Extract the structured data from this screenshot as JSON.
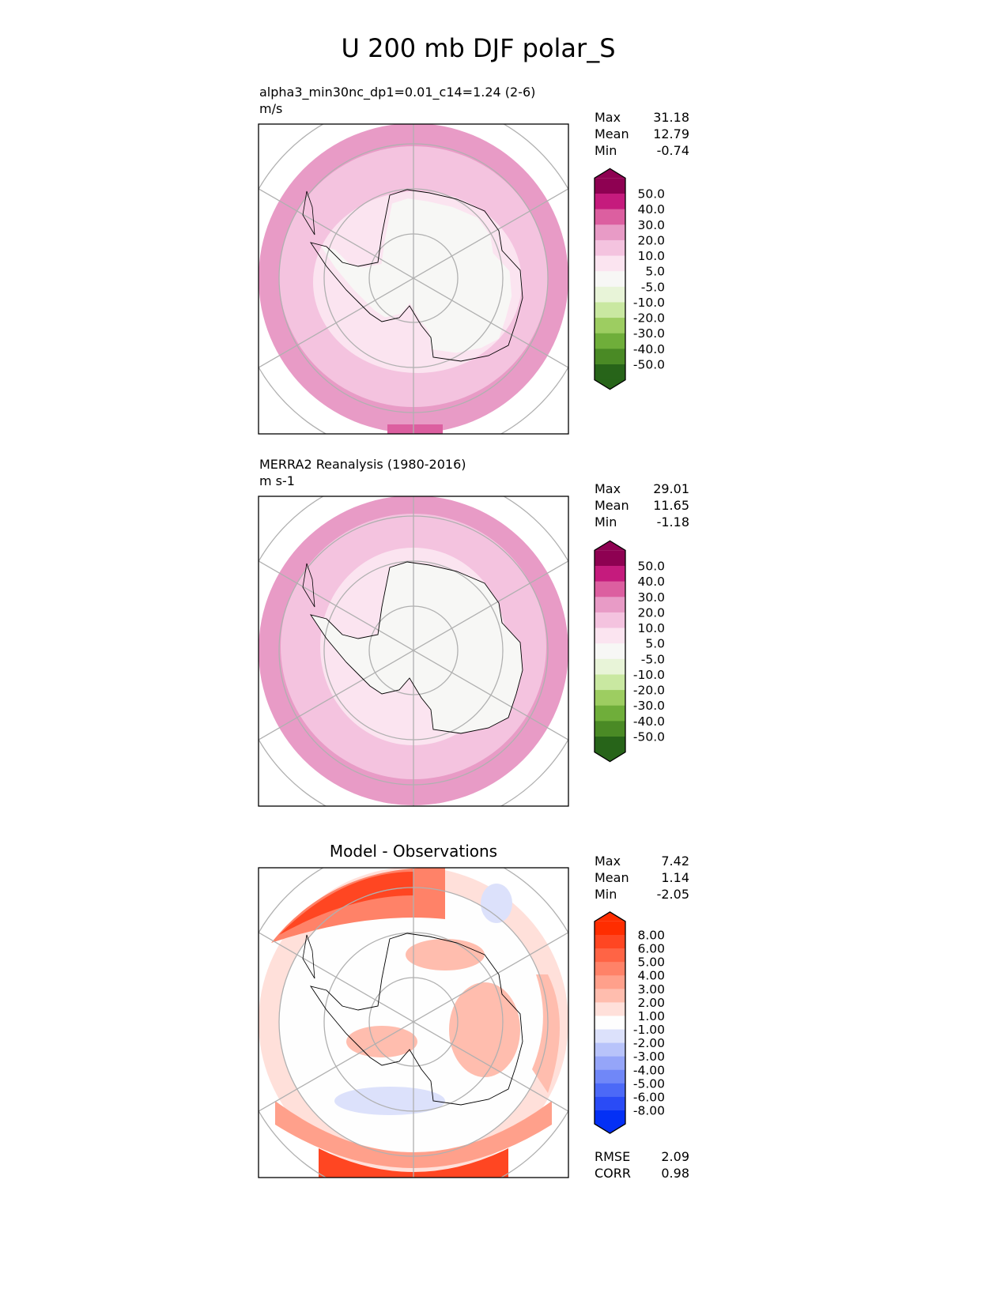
{
  "title": "U 200 mb DJF polar_S",
  "chart_data": [
    {
      "type": "heatmap",
      "projection": "polar_S",
      "title_line1": "alpha3_min30nc_dp1=0.01_c14=1.24 (2-6)",
      "title_line2": "m/s",
      "stats": [
        {
          "label": "Max",
          "value": "31.18"
        },
        {
          "label": "Mean",
          "value": "12.79"
        },
        {
          "label": "Min",
          "value": "-0.74"
        }
      ],
      "colorbar": {
        "labels": [
          "50.0",
          "40.0",
          "30.0",
          "20.0",
          "10.0",
          "5.0",
          "-5.0",
          "-10.0",
          "-20.0",
          "-30.0",
          "-40.0",
          "-50.0"
        ],
        "colors": [
          "#8e0152",
          "#c51b7d",
          "#dc5fa0",
          "#e89bc6",
          "#f4c3df",
          "#fbe4f0",
          "#f7f7f5",
          "#e8f4d8",
          "#c9e8a1",
          "#9dcd61",
          "#6fae3a",
          "#4a8a25",
          "#276419"
        ]
      },
      "rings": [
        "#e89bc6",
        "#f4c3df",
        "#fbe4f0",
        "#f7f7f5"
      ]
    },
    {
      "type": "heatmap",
      "projection": "polar_S",
      "title_line1": "MERRA2 Reanalysis (1980-2016)",
      "title_line2": "m s-1",
      "stats": [
        {
          "label": "Max",
          "value": "29.01"
        },
        {
          "label": "Mean",
          "value": "11.65"
        },
        {
          "label": "Min",
          "value": "-1.18"
        }
      ],
      "colorbar": {
        "labels": [
          "50.0",
          "40.0",
          "30.0",
          "20.0",
          "10.0",
          "5.0",
          "-5.0",
          "-10.0",
          "-20.0",
          "-30.0",
          "-40.0",
          "-50.0"
        ],
        "colors": [
          "#8e0152",
          "#c51b7d",
          "#dc5fa0",
          "#e89bc6",
          "#f4c3df",
          "#fbe4f0",
          "#f7f7f5",
          "#e8f4d8",
          "#c9e8a1",
          "#9dcd61",
          "#6fae3a",
          "#4a8a25",
          "#276419"
        ]
      },
      "rings": [
        "#e89bc6",
        "#f4c3df",
        "#fbe4f0",
        "#f7f7f5"
      ]
    },
    {
      "type": "heatmap",
      "projection": "polar_S",
      "title_center": "Model - Observations",
      "stats": [
        {
          "label": "Max",
          "value": "7.42"
        },
        {
          "label": "Mean",
          "value": "1.14"
        },
        {
          "label": "Min",
          "value": "-2.05"
        }
      ],
      "colorbar": {
        "labels": [
          "8.00",
          "6.00",
          "5.00",
          "4.00",
          "3.00",
          "2.00",
          "1.00",
          "-1.00",
          "-2.00",
          "-3.00",
          "-4.00",
          "-5.00",
          "-6.00",
          "-8.00"
        ],
        "colors": [
          "#ff2d00",
          "#ff4622",
          "#ff6445",
          "#ff8268",
          "#ffa08b",
          "#ffbdae",
          "#ffe0da",
          "#fefefe",
          "#dce1fb",
          "#b8c3fa",
          "#95a5f9",
          "#7087f8",
          "#4c69f7",
          "#2a4bf6",
          "#0430f5"
        ]
      },
      "footer_stats": [
        {
          "label": "RMSE",
          "value": "2.09"
        },
        {
          "label": "CORR",
          "value": "0.98"
        }
      ]
    }
  ]
}
